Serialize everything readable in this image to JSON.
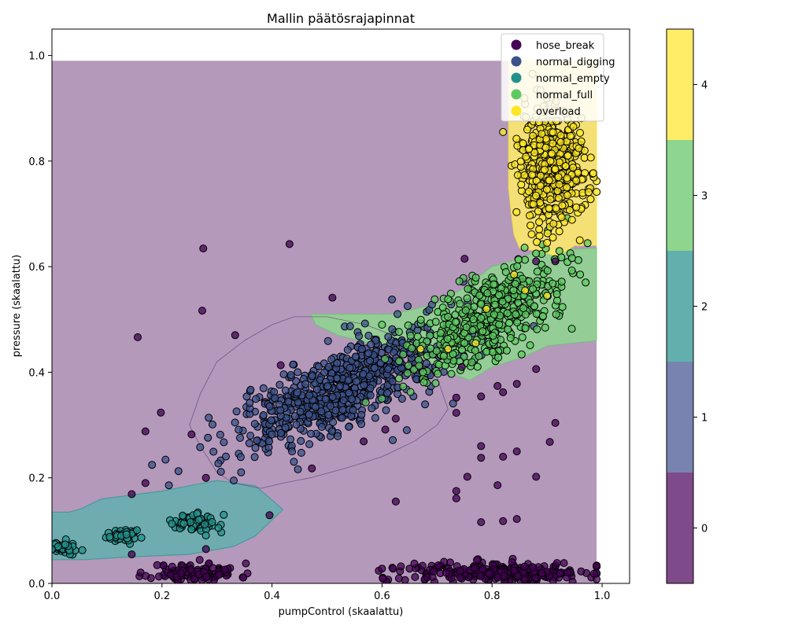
{
  "chart_data": {
    "type": "scatter",
    "title": "Mallin päätösrajapinnat",
    "xlabel": "pumpControl (skaalattu)",
    "ylabel": "pressure (skaalattu)",
    "xlim": [
      0.0,
      1.05
    ],
    "ylim": [
      0.0,
      1.05
    ],
    "xticks": [
      "0.0",
      "0.2",
      "0.4",
      "0.6",
      "0.8",
      "1.0"
    ],
    "yticks": [
      "0.0",
      "0.2",
      "0.4",
      "0.6",
      "0.8",
      "1.0"
    ],
    "grid": false,
    "legend_position": "top-right",
    "classes": [
      {
        "label": "hose_break",
        "color": "#440154",
        "region_color": "#7f4a8a",
        "colorbar_value": 0
      },
      {
        "label": "normal_digging",
        "color": "#3b528b",
        "region_color": "#7883b0",
        "colorbar_value": 1
      },
      {
        "label": "normal_empty",
        "color": "#21918c",
        "region_color": "#62afae",
        "colorbar_value": 2
      },
      {
        "label": "normal_full",
        "color": "#5ec962",
        "region_color": "#8ed68f",
        "colorbar_value": 3
      },
      {
        "label": "overload",
        "color": "#fde725",
        "region_color": "#ffec67",
        "colorbar_value": 4
      }
    ],
    "colorbar": {
      "ticks": [
        "0",
        "1",
        "2",
        "3",
        "4"
      ],
      "range": [
        -0.5,
        4.5
      ]
    },
    "decision_regions": {
      "background_class": "hose_break",
      "grid_extent": {
        "x": [
          0.0,
          0.99
        ],
        "y": [
          0.0,
          0.99
        ]
      },
      "polygons": [
        {
          "class": "normal_empty",
          "points": [
            [
              0.0,
              0.135
            ],
            [
              0.03,
              0.135
            ],
            [
              0.05,
              0.14
            ],
            [
              0.09,
              0.16
            ],
            [
              0.2,
              0.175
            ],
            [
              0.3,
              0.195
            ],
            [
              0.37,
              0.185
            ],
            [
              0.42,
              0.14
            ],
            [
              0.4,
              0.12
            ],
            [
              0.37,
              0.09
            ],
            [
              0.33,
              0.07
            ],
            [
              0.25,
              0.055
            ],
            [
              0.14,
              0.05
            ],
            [
              0.06,
              0.045
            ],
            [
              0.0,
              0.045
            ]
          ]
        },
        {
          "class": "normal_full",
          "points": [
            [
              0.47,
              0.51
            ],
            [
              0.62,
              0.51
            ],
            [
              0.7,
              0.53
            ],
            [
              0.75,
              0.56
            ],
            [
              0.8,
              0.6
            ],
            [
              0.85,
              0.615
            ],
            [
              0.88,
              0.63
            ],
            [
              0.99,
              0.635
            ],
            [
              0.99,
              0.46
            ],
            [
              0.9,
              0.45
            ],
            [
              0.86,
              0.43
            ],
            [
              0.8,
              0.41
            ],
            [
              0.76,
              0.385
            ],
            [
              0.72,
              0.4
            ],
            [
              0.67,
              0.43
            ],
            [
              0.6,
              0.45
            ],
            [
              0.56,
              0.46
            ],
            [
              0.52,
              0.47
            ],
            [
              0.48,
              0.49
            ]
          ]
        },
        {
          "class": "overload",
          "points": [
            [
              0.83,
              0.99
            ],
            [
              0.99,
              0.99
            ],
            [
              0.99,
              0.64
            ],
            [
              0.95,
              0.64
            ],
            [
              0.92,
              0.62
            ],
            [
              0.9,
              0.625
            ],
            [
              0.88,
              0.63
            ],
            [
              0.85,
              0.635
            ],
            [
              0.84,
              0.66
            ],
            [
              0.835,
              0.7
            ],
            [
              0.83,
              0.75
            ]
          ]
        }
      ],
      "contour_outline": [
        [
          0.44,
          0.505
        ],
        [
          0.5,
          0.505
        ],
        [
          0.57,
          0.49
        ],
        [
          0.62,
          0.47
        ],
        [
          0.65,
          0.44
        ],
        [
          0.7,
          0.39
        ],
        [
          0.72,
          0.33
        ],
        [
          0.7,
          0.3
        ],
        [
          0.66,
          0.27
        ],
        [
          0.6,
          0.24
        ],
        [
          0.54,
          0.22
        ],
        [
          0.47,
          0.2
        ],
        [
          0.42,
          0.19
        ],
        [
          0.38,
          0.18
        ],
        [
          0.33,
          0.19
        ],
        [
          0.3,
          0.21
        ],
        [
          0.27,
          0.26
        ],
        [
          0.25,
          0.3
        ],
        [
          0.27,
          0.36
        ],
        [
          0.3,
          0.42
        ],
        [
          0.35,
          0.46
        ],
        [
          0.4,
          0.49
        ]
      ]
    },
    "clusters": [
      {
        "class": "hose_break",
        "n": 110,
        "cx": 0.26,
        "cy": 0.02,
        "sx": 0.04,
        "sy": 0.009,
        "seed": 11
      },
      {
        "class": "hose_break",
        "n": 260,
        "cx": 0.82,
        "cy": 0.02,
        "sx": 0.085,
        "sy": 0.01,
        "seed": 12
      },
      {
        "class": "hose_break",
        "n": 14,
        "cx": 0.4,
        "cy": 0.38,
        "sx": 0.15,
        "sy": 0.18,
        "seed": 13
      },
      {
        "class": "normal_digging",
        "n": 700,
        "cx": 0.53,
        "cy": 0.37,
        "sx": 0.1,
        "sy": 0.04,
        "seed": 14
      },
      {
        "class": "normal_empty",
        "n": 55,
        "cx": 0.02,
        "cy": 0.068,
        "sx": 0.015,
        "sy": 0.006,
        "seed": 15
      },
      {
        "class": "normal_empty",
        "n": 45,
        "cx": 0.13,
        "cy": 0.09,
        "sx": 0.015,
        "sy": 0.006,
        "seed": 16
      },
      {
        "class": "normal_empty",
        "n": 70,
        "cx": 0.26,
        "cy": 0.113,
        "sx": 0.02,
        "sy": 0.008,
        "seed": 17
      },
      {
        "class": "normal_full",
        "n": 480,
        "cx": 0.79,
        "cy": 0.5,
        "sx": 0.07,
        "sy": 0.04,
        "seed": 18
      },
      {
        "class": "overload",
        "n": 520,
        "cx": 0.91,
        "cy": 0.79,
        "sx": 0.03,
        "sy": 0.055,
        "seed": 19
      }
    ],
    "scattered_points": [
      {
        "class": "hose_break",
        "x": 0.17,
        "y": 0.288
      },
      {
        "class": "hose_break",
        "x": 0.17,
        "y": 0.19
      },
      {
        "class": "hose_break",
        "x": 0.145,
        "y": 0.169
      },
      {
        "class": "hose_break",
        "x": 0.28,
        "y": 0.2
      },
      {
        "class": "hose_break",
        "x": 0.145,
        "y": 0.055
      },
      {
        "class": "hose_break",
        "x": 0.28,
        "y": 0.065
      },
      {
        "class": "hose_break",
        "x": 0.625,
        "y": 0.312
      },
      {
        "class": "hose_break",
        "x": 0.625,
        "y": 0.155
      },
      {
        "class": "hose_break",
        "x": 0.735,
        "y": 0.352
      },
      {
        "class": "hose_break",
        "x": 0.735,
        "y": 0.323
      },
      {
        "class": "hose_break",
        "x": 0.735,
        "y": 0.175
      },
      {
        "class": "hose_break",
        "x": 0.735,
        "y": 0.161
      },
      {
        "class": "hose_break",
        "x": 0.745,
        "y": 0.41
      },
      {
        "class": "hose_break",
        "x": 0.755,
        "y": 0.202
      },
      {
        "class": "hose_break",
        "x": 0.78,
        "y": 0.354
      },
      {
        "class": "hose_break",
        "x": 0.78,
        "y": 0.26
      },
      {
        "class": "hose_break",
        "x": 0.78,
        "y": 0.238
      },
      {
        "class": "hose_break",
        "x": 0.78,
        "y": 0.116
      },
      {
        "class": "hose_break",
        "x": 0.81,
        "y": 0.374
      },
      {
        "class": "hose_break",
        "x": 0.81,
        "y": 0.186
      },
      {
        "class": "hose_break",
        "x": 0.82,
        "y": 0.362
      },
      {
        "class": "hose_break",
        "x": 0.82,
        "y": 0.24
      },
      {
        "class": "hose_break",
        "x": 0.82,
        "y": 0.118
      },
      {
        "class": "hose_break",
        "x": 0.845,
        "y": 0.378
      },
      {
        "class": "hose_break",
        "x": 0.845,
        "y": 0.25
      },
      {
        "class": "hose_break",
        "x": 0.845,
        "y": 0.122
      },
      {
        "class": "hose_break",
        "x": 0.88,
        "y": 0.406
      },
      {
        "class": "hose_break",
        "x": 0.88,
        "y": 0.202
      },
      {
        "class": "hose_break",
        "x": 0.905,
        "y": 0.268
      },
      {
        "class": "hose_break",
        "x": 0.915,
        "y": 0.304
      },
      {
        "class": "hose_break",
        "x": 0.75,
        "y": 0.615
      },
      {
        "class": "hose_break",
        "x": 0.88,
        "y": 0.61
      },
      {
        "class": "hose_break",
        "x": 0.915,
        "y": 0.61
      },
      {
        "class": "hose_break",
        "x": 0.6,
        "y": 0.028
      },
      {
        "class": "hose_break",
        "x": 0.62,
        "y": 0.028
      },
      {
        "class": "hose_break",
        "x": 0.65,
        "y": 0.028
      },
      {
        "class": "hose_break",
        "x": 0.66,
        "y": 0.012
      },
      {
        "class": "normal_full",
        "x": 0.88,
        "y": 0.625
      },
      {
        "class": "normal_full",
        "x": 0.97,
        "y": 0.57
      },
      {
        "class": "normal_full",
        "x": 0.96,
        "y": 0.585
      },
      {
        "class": "normal_full",
        "x": 0.6,
        "y": 0.49
      },
      {
        "class": "normal_full",
        "x": 0.72,
        "y": 0.505
      },
      {
        "class": "overload",
        "x": 0.67,
        "y": 0.444
      },
      {
        "class": "overload",
        "x": 0.72,
        "y": 0.444
      },
      {
        "class": "overload",
        "x": 0.77,
        "y": 0.455
      },
      {
        "class": "overload",
        "x": 0.79,
        "y": 0.52
      },
      {
        "class": "overload",
        "x": 0.84,
        "y": 0.585
      },
      {
        "class": "overload",
        "x": 0.86,
        "y": 0.555
      },
      {
        "class": "overload",
        "x": 0.9,
        "y": 0.545
      },
      {
        "class": "overload",
        "x": 0.82,
        "y": 0.855
      },
      {
        "class": "overload",
        "x": 0.9,
        "y": 0.645
      }
    ]
  }
}
